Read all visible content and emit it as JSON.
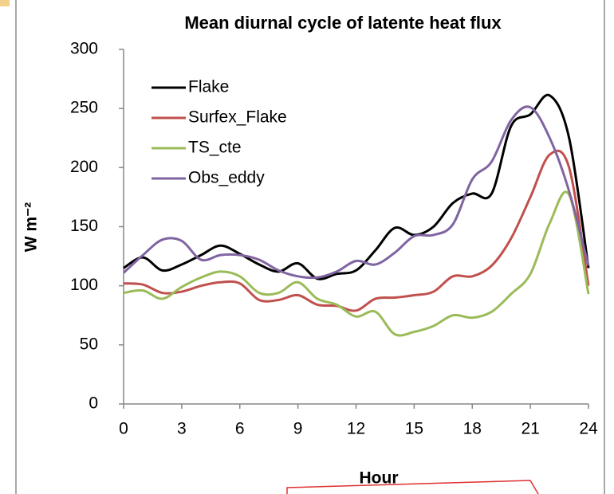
{
  "chart_data": {
    "type": "line",
    "title": "Mean diurnal cycle of latente heat flux",
    "xlabel": "Hour",
    "ylabel": "W m⁻²",
    "x": [
      0,
      1,
      2,
      3,
      4,
      5,
      6,
      7,
      8,
      9,
      10,
      11,
      12,
      13,
      14,
      15,
      16,
      17,
      18,
      19,
      20,
      21,
      22,
      23,
      24
    ],
    "series": [
      {
        "name": "Flake",
        "color": "#000000",
        "values": [
          115,
          124,
          113,
          118,
          126,
          134,
          127,
          118,
          112,
          119,
          106,
          110,
          113,
          130,
          149,
          143,
          150,
          170,
          178,
          178,
          235,
          245,
          261,
          225,
          115
        ]
      },
      {
        "name": "Surfex_Flake",
        "color": "#c0504d",
        "values": [
          102,
          101,
          94,
          95,
          100,
          103,
          102,
          88,
          88,
          92,
          84,
          83,
          79,
          89,
          90,
          92,
          95,
          108,
          108,
          117,
          140,
          175,
          211,
          200,
          100
        ]
      },
      {
        "name": "TS_cte",
        "color": "#9bbb59",
        "values": [
          94,
          96,
          89,
          99,
          107,
          112,
          108,
          94,
          94,
          103,
          89,
          84,
          74,
          78,
          59,
          61,
          66,
          75,
          73,
          78,
          93,
          110,
          153,
          177,
          93
        ]
      },
      {
        "name": "Obs_eddy",
        "color": "#8064a2",
        "values": [
          111,
          126,
          139,
          138,
          122,
          126,
          126,
          122,
          113,
          108,
          107,
          112,
          121,
          118,
          128,
          142,
          143,
          152,
          190,
          205,
          240,
          251,
          225,
          180,
          117
        ]
      }
    ],
    "xlim": [
      0,
      24
    ],
    "xticks": [
      0,
      3,
      6,
      9,
      12,
      15,
      18,
      21,
      24
    ],
    "ylim": [
      0,
      300
    ],
    "yticks": [
      0,
      50,
      100,
      150,
      200,
      250,
      300
    ],
    "grid": false,
    "legend": "upper left"
  }
}
